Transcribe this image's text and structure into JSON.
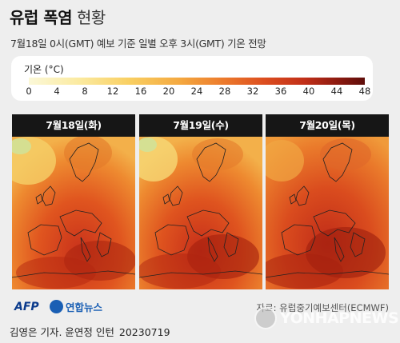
{
  "title": {
    "bold": "유럽 폭염",
    "light": "현황"
  },
  "subtitle": "7월18일 0시(GMT) 예보 기준 일별 오후 3시(GMT) 기온 전망",
  "legend": {
    "title": "기온 (°C)",
    "ticks": [
      "0",
      "4",
      "8",
      "12",
      "16",
      "20",
      "24",
      "28",
      "32",
      "36",
      "40",
      "44",
      "48"
    ],
    "colors": [
      "#fbf8d8",
      "#f9cf62",
      "#ec7a2c",
      "#c12f18",
      "#5e0d0a"
    ]
  },
  "panels": [
    {
      "date": "7월18일(화)"
    },
    {
      "date": "7월19일(수)"
    },
    {
      "date": "7월20일(목)"
    }
  ],
  "footer": {
    "afp": "AFP",
    "yonhap": "연합뉴스",
    "source": "자료: 유럽중기예보센터(ECMWF)",
    "credit": "김영은 기자. 윤연정 인턴",
    "date": "20230719",
    "watermark": "YONHAPNEWS"
  }
}
